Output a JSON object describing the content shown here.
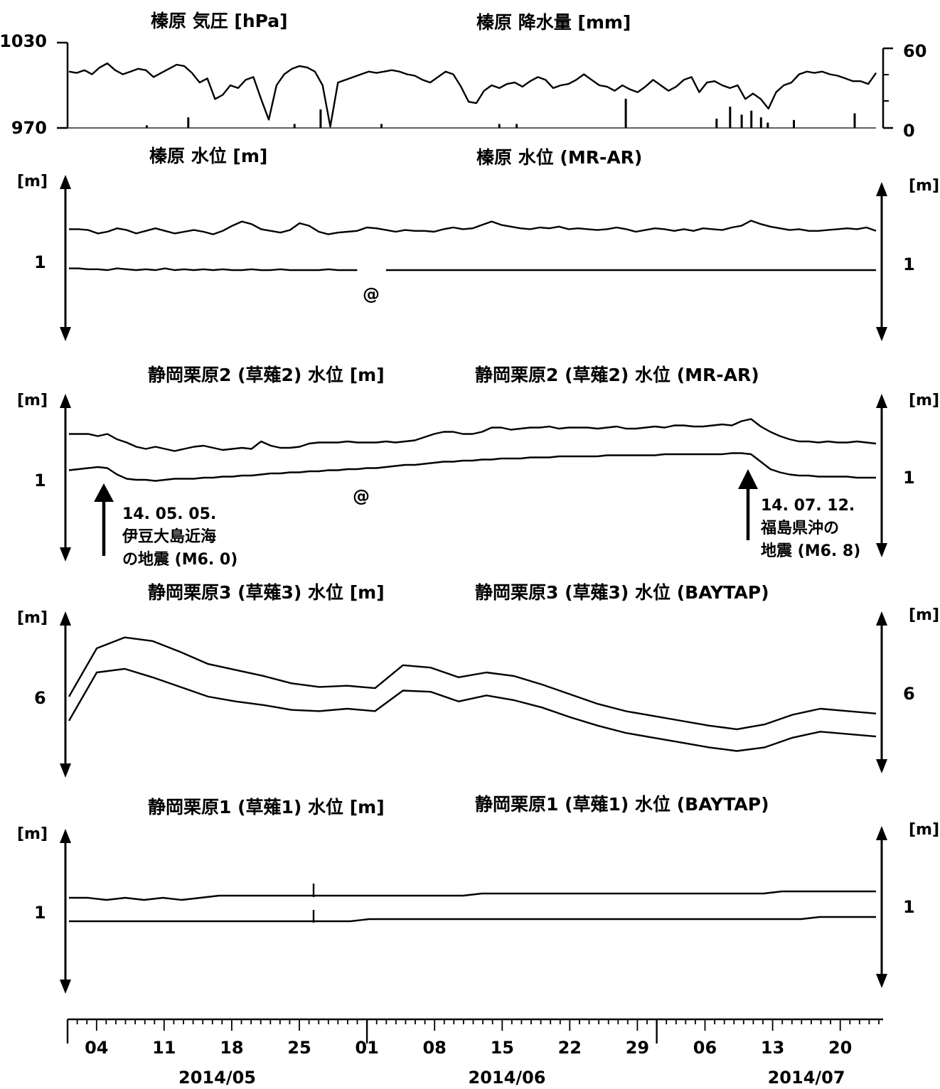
{
  "chart_data": [
    {
      "type": "line",
      "title_left": "榛原 気圧 [hPa]",
      "title_right": "榛原 降水量 [mm]",
      "left_axis": {
        "ticks": [
          "1030",
          "970"
        ],
        "range": [
          970,
          1030
        ]
      },
      "right_axis": {
        "ticks": [
          "60",
          "0"
        ],
        "range": [
          0,
          60
        ]
      },
      "series": [
        {
          "kind": "line",
          "values": [
            1010,
            1009,
            1011,
            1008,
            1013,
            1016,
            1011,
            1008,
            1010,
            1012,
            1011,
            1006,
            1009,
            1012,
            1015,
            1014,
            1009,
            1002,
            1005,
            990,
            993,
            1000,
            998,
            1004,
            1006,
            990,
            975,
            1000,
            1008,
            1012,
            1014,
            1013,
            1010,
            1000,
            970,
            1002,
            1004,
            1006,
            1008,
            1010,
            1009,
            1010,
            1011,
            1010,
            1008,
            1007,
            1004,
            1002,
            1006,
            1010,
            1008,
            999,
            988,
            987,
            996,
            1000,
            998,
            1001,
            1002,
            999,
            1003,
            1006,
            1004,
            998,
            1000,
            1001,
            1004,
            1008,
            1004,
            1000,
            999,
            996,
            1000,
            997,
            995,
            999,
            1004,
            1000,
            996,
            999,
            1004,
            1006,
            995,
            1002,
            1003,
            1000,
            998,
            1000,
            990,
            994,
            990,
            983,
            995,
            1000,
            1002,
            1008,
            1010,
            1009,
            1010,
            1008,
            1007,
            1005,
            1003,
            1003,
            1001,
            1009
          ]
        },
        {
          "kind": "bar",
          "bars": [
            [
              8.2,
              2
            ],
            [
              12.5,
              8
            ],
            [
              23.5,
              3
            ],
            [
              26.2,
              14
            ],
            [
              32.5,
              3
            ],
            [
              44.7,
              3
            ],
            [
              46.5,
              3
            ],
            [
              57.8,
              22
            ],
            [
              67.2,
              7
            ],
            [
              68.6,
              16
            ],
            [
              69.8,
              10
            ],
            [
              70.8,
              13
            ],
            [
              71.8,
              8
            ],
            [
              72.5,
              4
            ],
            [
              75.2,
              6
            ],
            [
              81.5,
              11
            ]
          ]
        }
      ]
    },
    {
      "type": "line",
      "title_left": "榛原 水位 [m]",
      "title_right": "榛原 水位 (MR-AR)",
      "unit_left": "[m]",
      "unit_right": "[m]",
      "left_tick": "1",
      "right_tick": "1",
      "marker": "@",
      "series": [
        {
          "values": [
            1.48,
            1.48,
            1.47,
            1.43,
            1.45,
            1.49,
            1.47,
            1.43,
            1.46,
            1.49,
            1.46,
            1.43,
            1.45,
            1.47,
            1.45,
            1.42,
            1.46,
            1.52,
            1.57,
            1.54,
            1.48,
            1.46,
            1.44,
            1.47,
            1.55,
            1.52,
            1.45,
            1.42,
            1.44,
            1.45,
            1.46,
            1.5,
            1.49,
            1.47,
            1.45,
            1.47,
            1.46,
            1.46,
            1.45,
            1.48,
            1.5,
            1.48,
            1.49,
            1.53,
            1.57,
            1.53,
            1.51,
            1.49,
            1.48,
            1.5,
            1.49,
            1.51,
            1.48,
            1.49,
            1.48,
            1.47,
            1.48,
            1.5,
            1.48,
            1.45,
            1.47,
            1.49,
            1.48,
            1.46,
            1.48,
            1.46,
            1.49,
            1.48,
            1.47,
            1.5,
            1.52,
            1.58,
            1.54,
            1.51,
            1.49,
            1.47,
            1.48,
            1.46,
            1.46,
            1.47,
            1.48,
            1.49,
            1.48,
            1.5,
            1.46
          ]
        },
        {
          "values": [
            1.02,
            1.02,
            1.01,
            1.01,
            1.0,
            1.02,
            1.01,
            1.0,
            1.01,
            1.0,
            1.02,
            1.0,
            1.01,
            1.0,
            1.01,
            1.0,
            1.01,
            1.0,
            1.0,
            1.01,
            1.0,
            1.0,
            1.01,
            1.0,
            1.0,
            1.0,
            1.0,
            1.01,
            1.0,
            1.0,
            1.0,
            null,
            null,
            1.0,
            1.0,
            1.0,
            1.0,
            1.0,
            1.0,
            1.0,
            1.0,
            1.0,
            1.0,
            1.0,
            1.0,
            1.0,
            1.0,
            1.0,
            1.0,
            1.0,
            1.0,
            1.0,
            1.0,
            1.0,
            1.0,
            1.0,
            1.0,
            1.0,
            1.0,
            1.0,
            1.0,
            1.0,
            1.0,
            1.0,
            1.0,
            1.0,
            1.0,
            1.0,
            1.0,
            1.0,
            1.0,
            1.0,
            1.0,
            1.0,
            1.0,
            1.0,
            1.0,
            1.0,
            1.0,
            1.0,
            1.0,
            1.0,
            1.0,
            1.0,
            1.0
          ]
        }
      ]
    },
    {
      "type": "line",
      "title_left": "静岡栗原2 (草薙2) 水位 [m]",
      "title_right": "静岡栗原2 (草薙2) 水位 (MR-AR)",
      "unit_left": "[m]",
      "unit_right": "[m]",
      "left_tick": "1",
      "right_tick": "1",
      "marker": "@",
      "annotations": [
        {
          "x": 4.5,
          "lines": [
            "14. 05. 05.",
            "伊豆大島近海",
            "の地震 (M6. 0)"
          ]
        },
        {
          "x": 82.2,
          "lines": [
            "14. 07. 12.",
            "福島県沖の",
            "地震 (M6. 8)"
          ]
        }
      ],
      "series": [
        {
          "values": [
            1.41,
            1.41,
            1.41,
            1.39,
            1.41,
            1.36,
            1.33,
            1.29,
            1.27,
            1.29,
            1.27,
            1.25,
            1.27,
            1.29,
            1.3,
            1.28,
            1.26,
            1.27,
            1.28,
            1.27,
            1.34,
            1.3,
            1.28,
            1.28,
            1.29,
            1.32,
            1.33,
            1.33,
            1.33,
            1.34,
            1.33,
            1.33,
            1.33,
            1.34,
            1.33,
            1.34,
            1.35,
            1.38,
            1.41,
            1.43,
            1.43,
            1.41,
            1.41,
            1.43,
            1.47,
            1.47,
            1.45,
            1.46,
            1.47,
            1.47,
            1.48,
            1.46,
            1.47,
            1.47,
            1.47,
            1.46,
            1.47,
            1.48,
            1.46,
            1.46,
            1.47,
            1.48,
            1.47,
            1.49,
            1.49,
            1.48,
            1.48,
            1.49,
            1.5,
            1.49,
            1.53,
            1.55,
            1.48,
            1.43,
            1.39,
            1.36,
            1.34,
            1.34,
            1.33,
            1.34,
            1.33,
            1.33,
            1.34,
            1.33,
            1.32
          ]
        },
        {
          "values": [
            1.07,
            1.08,
            1.09,
            1.1,
            1.09,
            1.03,
            0.99,
            0.98,
            0.98,
            0.97,
            0.98,
            0.99,
            0.99,
            0.99,
            1.0,
            1.0,
            1.01,
            1.01,
            1.02,
            1.02,
            1.03,
            1.04,
            1.04,
            1.05,
            1.05,
            1.06,
            1.06,
            1.07,
            1.07,
            1.08,
            1.08,
            1.09,
            1.09,
            1.1,
            1.11,
            1.12,
            1.12,
            1.13,
            1.14,
            1.15,
            1.15,
            1.16,
            1.16,
            1.17,
            1.17,
            1.18,
            1.18,
            1.18,
            1.19,
            1.19,
            1.19,
            1.2,
            1.2,
            1.2,
            1.2,
            1.2,
            1.21,
            1.21,
            1.21,
            1.21,
            1.21,
            1.21,
            1.22,
            1.22,
            1.22,
            1.22,
            1.22,
            1.22,
            1.22,
            1.23,
            1.23,
            1.22,
            1.15,
            1.08,
            1.05,
            1.03,
            1.02,
            1.02,
            1.01,
            1.01,
            1.01,
            1.01,
            1.0,
            1.0,
            1.0
          ]
        }
      ]
    },
    {
      "type": "line",
      "title_left": "静岡栗原3 (草薙3) 水位 [m]",
      "title_right": "静岡栗原3 (草薙3) 水位 (BAYTAP)",
      "unit_left": "[m]",
      "unit_right": "[m]",
      "left_tick": "6",
      "right_tick": "6",
      "series": [
        {
          "values": [
            6.0,
            6.4,
            6.49,
            6.46,
            6.37,
            6.27,
            6.22,
            6.17,
            6.11,
            6.08,
            6.09,
            6.07,
            6.26,
            6.24,
            6.16,
            6.2,
            6.17,
            6.1,
            6.02,
            5.94,
            5.88,
            5.84,
            5.8,
            5.76,
            5.73,
            5.77,
            5.85,
            5.9,
            5.88,
            5.86
          ]
        },
        {
          "values": [
            5.8,
            6.2,
            6.23,
            6.16,
            6.08,
            6.0,
            5.96,
            5.93,
            5.89,
            5.88,
            5.9,
            5.88,
            6.05,
            6.04,
            5.96,
            6.01,
            5.97,
            5.91,
            5.83,
            5.76,
            5.7,
            5.66,
            5.62,
            5.58,
            5.55,
            5.58,
            5.66,
            5.71,
            5.69,
            5.67
          ]
        }
      ]
    },
    {
      "type": "line",
      "title_left": "静岡栗原1 (草薙1) 水位 [m]",
      "title_right": "静岡栗原1 (草薙1) 水位 (BAYTAP)",
      "unit_left": "[m]",
      "unit_right": "[m]",
      "left_tick": "1",
      "right_tick": "1",
      "series": [
        {
          "values": [
            1.07,
            1.07,
            1.06,
            1.07,
            1.06,
            1.07,
            1.06,
            1.07,
            1.08,
            1.08,
            1.08,
            1.08,
            1.08,
            1.08,
            1.08,
            1.08,
            1.08,
            1.08,
            1.08,
            1.08,
            1.08,
            1.08,
            1.09,
            1.09,
            1.09,
            1.09,
            1.09,
            1.09,
            1.09,
            1.09,
            1.09,
            1.09,
            1.09,
            1.09,
            1.09,
            1.09,
            1.09,
            1.09,
            1.1,
            1.1,
            1.1,
            1.1,
            1.1,
            1.1
          ]
        },
        {
          "values": [
            0.96,
            0.96,
            0.96,
            0.96,
            0.96,
            0.96,
            0.96,
            0.96,
            0.96,
            0.96,
            0.96,
            0.96,
            0.96,
            0.96,
            0.96,
            0.96,
            0.97,
            0.97,
            0.97,
            0.97,
            0.97,
            0.97,
            0.97,
            0.97,
            0.97,
            0.97,
            0.97,
            0.97,
            0.97,
            0.97,
            0.97,
            0.97,
            0.97,
            0.97,
            0.97,
            0.97,
            0.97,
            0.97,
            0.97,
            0.97,
            0.98,
            0.98,
            0.98,
            0.98
          ]
        }
      ]
    }
  ],
  "time_axis": {
    "day_labels": [
      {
        "day": 3.0,
        "text": "04"
      },
      {
        "day": 10.0,
        "text": "11"
      },
      {
        "day": 17.0,
        "text": "18"
      },
      {
        "day": 24.0,
        "text": "25"
      },
      {
        "day": 31.0,
        "text": "01"
      },
      {
        "day": 38.0,
        "text": "08"
      },
      {
        "day": 45.0,
        "text": "15"
      },
      {
        "day": 52.0,
        "text": "22"
      },
      {
        "day": 59.0,
        "text": "29"
      },
      {
        "day": 66.0,
        "text": "06"
      },
      {
        "day": 73.0,
        "text": "13"
      },
      {
        "day": 80.0,
        "text": "20"
      }
    ],
    "month_labels": [
      {
        "day": 15.5,
        "text": "2014/05"
      },
      {
        "day": 45.5,
        "text": "2014/06"
      },
      {
        "day": 76.5,
        "text": "2014/07"
      }
    ],
    "month_boundaries": [
      31,
      61
    ],
    "start_date": "2014-05-01",
    "days": 84
  }
}
